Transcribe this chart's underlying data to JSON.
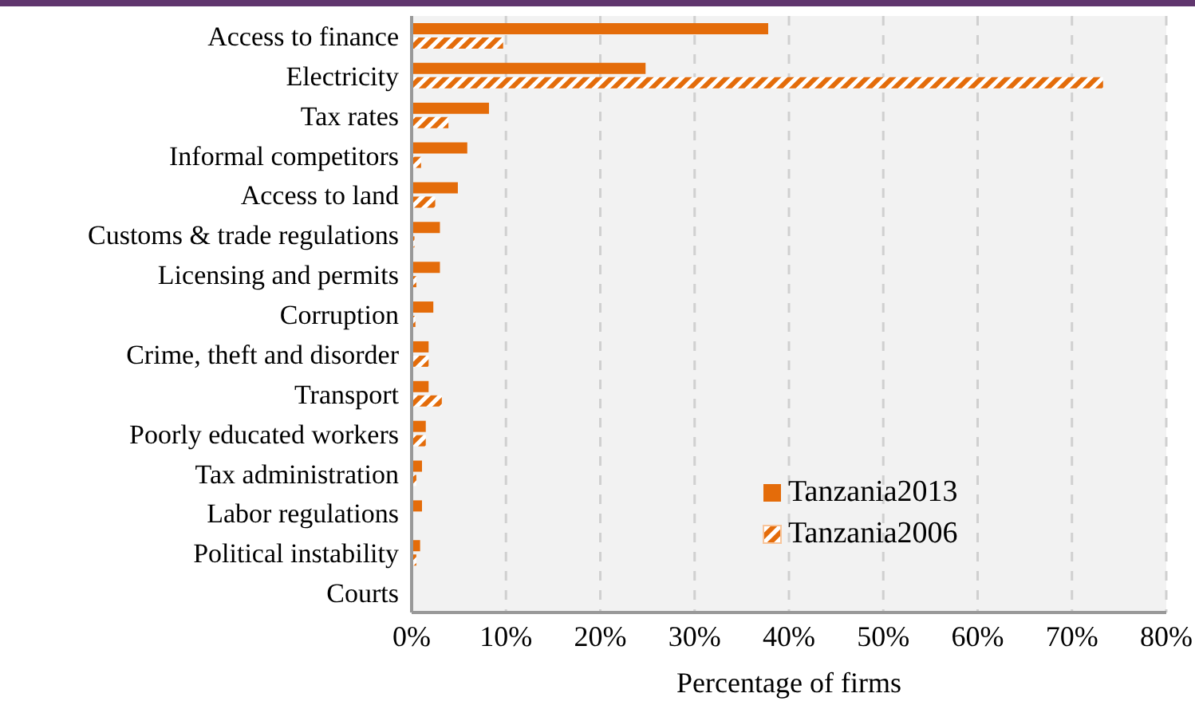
{
  "chart_data": {
    "type": "bar",
    "orientation": "horizontal",
    "xlabel": "Percentage of firms",
    "categories": [
      "Access to finance",
      "Electricity",
      "Tax rates",
      "Informal competitors",
      "Access to land",
      "Customs & trade regulations",
      "Licensing and permits",
      "Corruption",
      "Crime, theft and disorder",
      "Transport",
      "Poorly educated workers",
      "Tax administration",
      "Labor regulations",
      "Political instability",
      "Courts"
    ],
    "series": [
      {
        "name": "Tanzania2013",
        "color": "#e46c0a",
        "values": [
          37.8,
          24.8,
          8.2,
          5.9,
          4.9,
          3.0,
          3.0,
          2.3,
          1.8,
          1.8,
          1.5,
          1.1,
          1.1,
          0.9,
          0
        ]
      },
      {
        "name": "Tanzania2006",
        "color": "#e46c0a",
        "values": [
          9.7,
          73.3,
          3.9,
          1.0,
          2.5,
          0.3,
          0.5,
          0.4,
          1.8,
          3.2,
          1.5,
          0.5,
          0,
          0.5,
          0
        ]
      }
    ],
    "xlim": [
      0,
      80
    ],
    "xticks": [
      {
        "value": 0,
        "label": "0%"
      },
      {
        "value": 10,
        "label": "10%"
      },
      {
        "value": 20,
        "label": "20%"
      },
      {
        "value": 30,
        "label": "30%"
      },
      {
        "value": 40,
        "label": "40%"
      },
      {
        "value": 50,
        "label": "50%"
      },
      {
        "value": 60,
        "label": "60%"
      },
      {
        "value": 70,
        "label": "70%"
      },
      {
        "value": 80,
        "label": "80%"
      }
    ],
    "grid": "x",
    "legend": "bottom right"
  }
}
